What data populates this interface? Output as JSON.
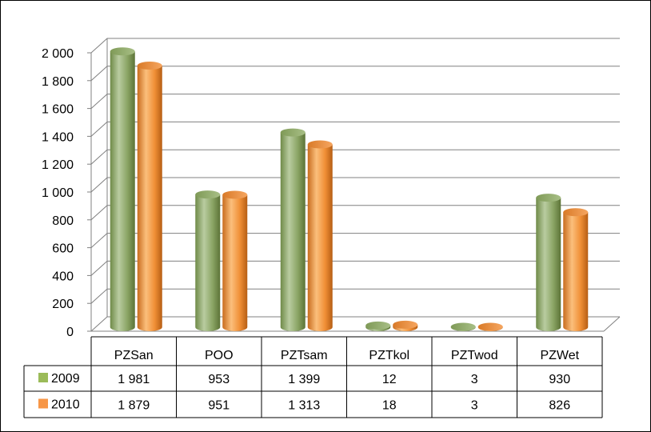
{
  "chart_data": {
    "type": "bar",
    "title": "",
    "xlabel": "",
    "ylabel": "",
    "ylim": [
      0,
      2000
    ],
    "yticks": [
      "0",
      "200",
      "400",
      "600",
      "800",
      "1 000",
      "1 200",
      "1 400",
      "1 600",
      "1 800",
      "2 000"
    ],
    "grid": true,
    "legend": "in data table",
    "categories": [
      "PZSan",
      "POO",
      "PZTsam",
      "PZTkol",
      "PZTwod",
      "PZWet"
    ],
    "series": [
      {
        "name": "2009",
        "values": [
          1981,
          953,
          1399,
          12,
          3,
          930
        ],
        "labels": [
          "1 981",
          "953",
          "1 399",
          "12",
          "3",
          "930"
        ],
        "color": "#9BBB59"
      },
      {
        "name": "2010",
        "values": [
          1879,
          951,
          1313,
          18,
          3,
          826
        ],
        "labels": [
          "1 879",
          "951",
          "1 313",
          "18",
          "3",
          "826"
        ],
        "color": "#F79646"
      }
    ]
  }
}
